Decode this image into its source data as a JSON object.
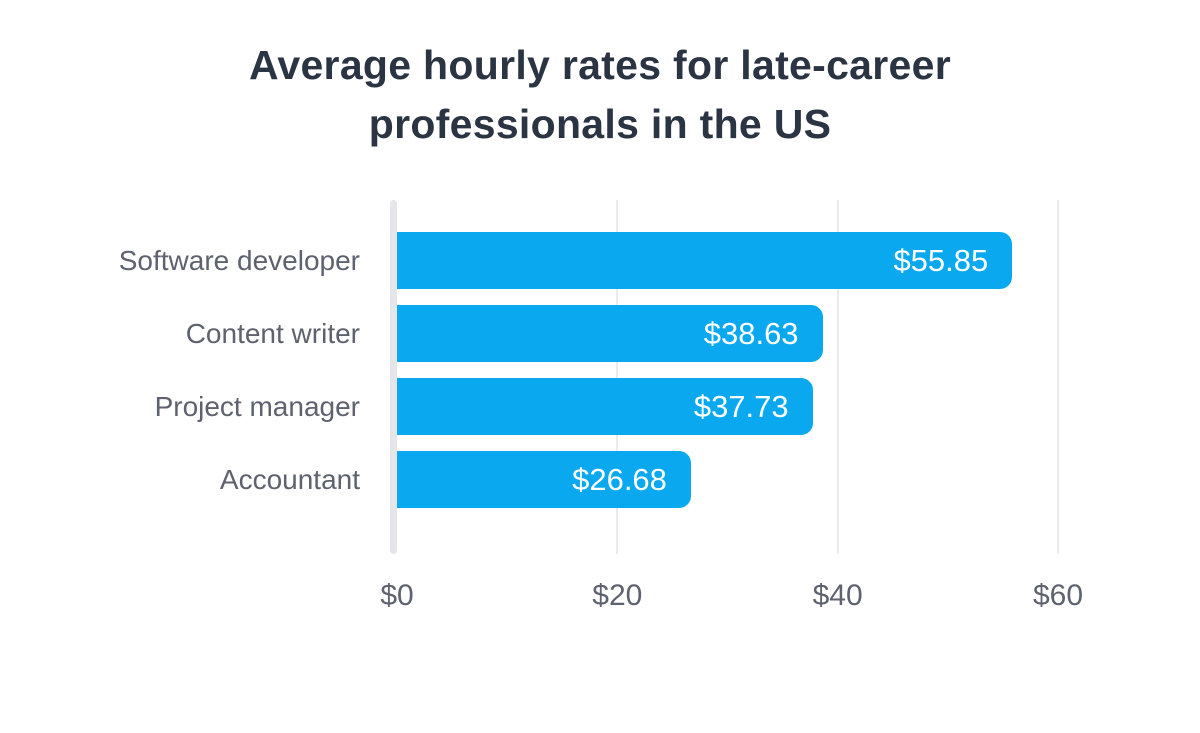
{
  "chart_data": {
    "type": "bar",
    "orientation": "horizontal",
    "title": "Average hourly rates for late-career professionals in the US",
    "categories": [
      "Software developer",
      "Content writer",
      "Project manager",
      "Accountant"
    ],
    "values": [
      55.85,
      38.63,
      37.73,
      26.68
    ],
    "value_labels": [
      "$55.85",
      "$38.63",
      "$37.73",
      "$26.68"
    ],
    "x_tick_labels": [
      "$0",
      "$20",
      "$40",
      "$60"
    ],
    "xlim": [
      0,
      60
    ],
    "xlabel": "",
    "ylabel": "",
    "grid": "vertical gridlines at $20 steps",
    "legend": "none",
    "colors": {
      "bar": "#0aa9ef",
      "value_label": "#ffffff",
      "title": "#2a3442",
      "category_label": "#5d626e",
      "tick_label": "#5d626e",
      "axis_line": "#e4e6e9",
      "gridline": "#eaebed",
      "background": "#ffffff"
    }
  }
}
